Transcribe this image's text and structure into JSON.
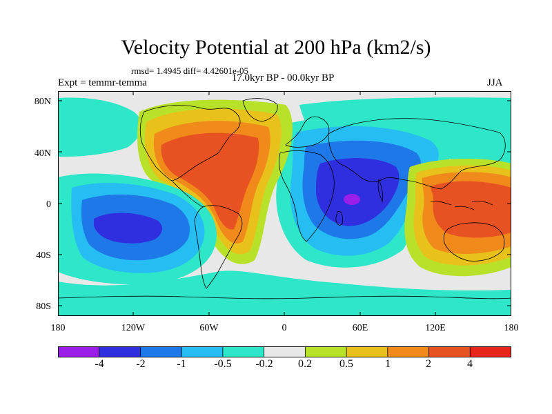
{
  "header": {
    "title": "Velocity Potential at 200 hPa (km2/s)",
    "stats": "rmsd= 1.4945 diff= 4.42601e-05",
    "experiment": "Expt = temmr-temma",
    "period": "17.0kyr BP - 00.0kyr BP",
    "season": "JJA"
  },
  "axes": {
    "y_ticks": [
      "80N",
      "40N",
      "0",
      "40S",
      "80S"
    ],
    "x_ticks": [
      "180",
      "120W",
      "60W",
      "0",
      "60E",
      "120E",
      "180"
    ]
  },
  "colorbar": {
    "labels": [
      "-4",
      "-2",
      "-1",
      "-0.5",
      "-0.2",
      "0.2",
      "0.5",
      "1",
      "2",
      "4"
    ],
    "colors": [
      "#9b1fe8",
      "#2f2fe0",
      "#1f78e8",
      "#25bdf2",
      "#2ee6c8",
      "#e8e8e8",
      "#b8e22a",
      "#e8c21a",
      "#f08a1a",
      "#e85222",
      "#e8251a"
    ]
  },
  "map": {
    "background_color": "#e8e8e8",
    "coastline_color": "#000000",
    "levels": {
      "neg_strong": "#2f2fe0",
      "neg_mid": "#1f78e8",
      "neg_weak": "#25bdf2",
      "neg_faint": "#2ee6c8",
      "neutral": "#e8e8e8",
      "pos_faint": "#b8e22a",
      "pos_weak": "#e8c21a",
      "pos_mid": "#f08a1a",
      "pos_strong": "#e85222",
      "min_core": "#9b1fe8"
    }
  }
}
